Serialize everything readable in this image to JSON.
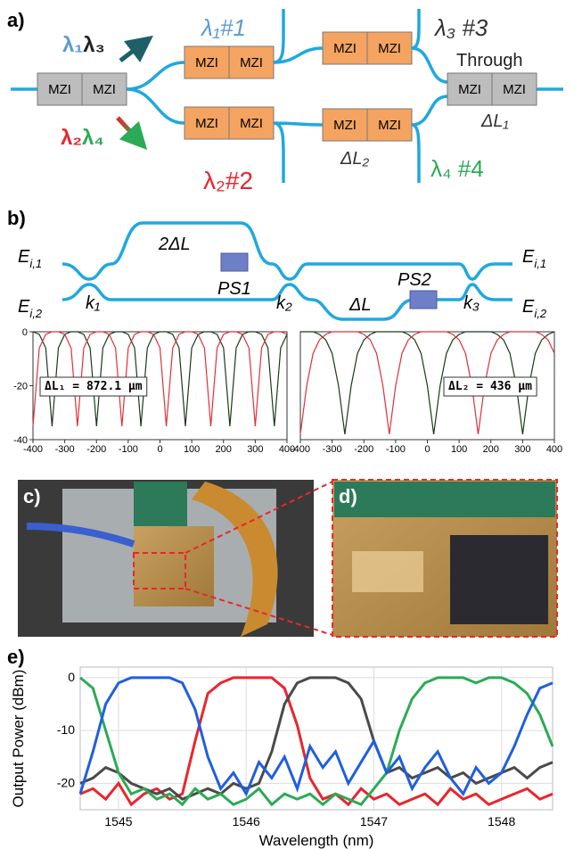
{
  "panel_a": {
    "label": "a)",
    "mzi_boxes": [
      "MZI",
      "MZI",
      "MZI",
      "MZI",
      "MZI",
      "MZI",
      "MZI",
      "MZI",
      "MZI",
      "MZI",
      "MZI",
      "MZI"
    ],
    "in_upper": [
      "λ₁",
      "λ₃"
    ],
    "in_lower": [
      "λ₂",
      "λ₄"
    ],
    "port1": "λ₁#1",
    "port2": "λ₂#2",
    "port3": "λ₃ #3",
    "port4": "λ₄ #4",
    "through": "Through",
    "dl1": "ΔL₁",
    "dl2": "ΔL₂"
  },
  "panel_b": {
    "label": "b)",
    "ports": [
      {
        "main": "E",
        "sub": "i,1"
      },
      {
        "main": "E",
        "sub": "i,2"
      },
      {
        "main": "E",
        "sub": "i,1"
      },
      {
        "main": "E",
        "sub": "i,2"
      }
    ],
    "couplers": [
      "k₁",
      "k₂",
      "k₃"
    ],
    "arms": [
      "2ΔL",
      "ΔL"
    ],
    "phase_shifters": [
      "PS1",
      "PS2"
    ]
  },
  "panel_c": {
    "label": "c)"
  },
  "panel_d": {
    "label": "d)"
  },
  "panel_e": {
    "label": "e)"
  },
  "chart_data": [
    {
      "type": "line",
      "annotation": "ΔL₁ = 872.1 μm",
      "x": [
        -400,
        -380,
        -360,
        -340,
        -320,
        -300,
        -280,
        -260,
        -240,
        -220,
        -200,
        -180,
        -160,
        -140,
        -120,
        -100,
        -80,
        -60,
        -40,
        -20,
        0,
        20,
        40,
        60,
        80,
        100,
        120,
        140,
        160,
        180,
        200,
        220,
        240,
        260,
        280,
        300,
        320,
        340,
        360,
        380,
        400
      ],
      "series": [
        {
          "color": "#1a3a1a",
          "values": [
            0,
            -1,
            -6,
            -35,
            -6,
            -1,
            0,
            0,
            -1,
            -6,
            -35,
            -6,
            -1,
            0,
            0,
            -1,
            -6,
            -35,
            -6,
            -1,
            0,
            0,
            -1,
            -6,
            -35,
            -6,
            -1,
            0,
            0,
            -1,
            -6,
            -35,
            -6,
            -1,
            0,
            0,
            -1,
            -6,
            -35,
            -6,
            -1
          ]
        },
        {
          "color": "#e0303a",
          "values": [
            -35,
            -6,
            -1,
            0,
            0,
            -1,
            -6,
            -35,
            -6,
            -1,
            0,
            0,
            -1,
            -6,
            -35,
            -6,
            -1,
            0,
            0,
            -1,
            -6,
            -35,
            -6,
            -1,
            0,
            0,
            -1,
            -6,
            -35,
            -6,
            -1,
            0,
            0,
            -1,
            -6,
            -35,
            -6,
            -1,
            0,
            0,
            -1
          ]
        }
      ],
      "xlim": [
        -400,
        400
      ],
      "xticks": [
        -400,
        -300,
        -200,
        -100,
        0,
        100,
        200,
        300,
        400
      ],
      "ylim": [
        -40,
        0
      ],
      "yticks": [
        -40,
        -20,
        0
      ]
    },
    {
      "type": "line",
      "annotation": "ΔL₂ = 436 μm",
      "x": [
        -400,
        -380,
        -360,
        -340,
        -320,
        -300,
        -280,
        -260,
        -240,
        -220,
        -200,
        -180,
        -160,
        -140,
        -120,
        -100,
        -80,
        -60,
        -40,
        -20,
        0,
        20,
        40,
        60,
        80,
        100,
        120,
        140,
        160,
        180,
        200,
        220,
        240,
        260,
        280,
        300,
        320,
        340,
        360,
        380,
        400
      ],
      "series": [
        {
          "color": "#1a3a1a",
          "values": [
            0,
            0,
            0,
            -1,
            -3,
            -8,
            -20,
            -38,
            -20,
            -8,
            -3,
            -1,
            0,
            0,
            0,
            0,
            0,
            -1,
            -3,
            -8,
            -20,
            -38,
            -20,
            -8,
            -3,
            -1,
            0,
            0,
            0,
            0,
            0,
            -1,
            -3,
            -8,
            -20,
            -38,
            -20,
            -8,
            -3,
            -1,
            0
          ]
        },
        {
          "color": "#e0303a",
          "values": [
            -38,
            -20,
            -8,
            -3,
            -1,
            0,
            0,
            0,
            0,
            0,
            -1,
            -3,
            -8,
            -20,
            -38,
            -20,
            -8,
            -3,
            -1,
            0,
            0,
            0,
            0,
            0,
            -1,
            -3,
            -8,
            -20,
            -38,
            -20,
            -8,
            -3,
            -1,
            0,
            0,
            0,
            0,
            0,
            -1,
            -3,
            -8
          ]
        }
      ],
      "xlim": [
        -400,
        400
      ],
      "xticks": [
        -400,
        -300,
        -200,
        -100,
        0,
        100,
        200,
        300,
        400
      ],
      "ylim": [
        -40,
        0
      ]
    },
    {
      "type": "line",
      "x_label": "Wavelength (nm)",
      "y_label": "Output Power (dBm)",
      "x": [
        1544.7,
        1544.8,
        1544.9,
        1545.0,
        1545.1,
        1545.2,
        1545.3,
        1545.4,
        1545.5,
        1545.6,
        1545.7,
        1545.8,
        1545.9,
        1546.0,
        1546.1,
        1546.2,
        1546.3,
        1546.4,
        1546.5,
        1546.6,
        1546.7,
        1546.8,
        1546.9,
        1547.0,
        1547.1,
        1547.2,
        1547.3,
        1547.4,
        1547.5,
        1547.6,
        1547.7,
        1547.8,
        1547.9,
        1548.0,
        1548.1,
        1548.2,
        1548.3,
        1548.4
      ],
      "series": [
        {
          "color": "#e8262c",
          "values": [
            -22,
            -21,
            -23,
            -20,
            -24,
            -22,
            -21,
            -23,
            -22,
            -12,
            -3,
            -1,
            0,
            0,
            0,
            0,
            -2,
            -9,
            -19,
            -23,
            -22,
            -24,
            -21,
            -23,
            -22,
            -24,
            -23,
            -22,
            -24,
            -21,
            -23,
            -22,
            -24,
            -23,
            -22,
            -21,
            -23,
            -22
          ]
        },
        {
          "color": "#4a4a4a",
          "values": [
            -20,
            -19,
            -17,
            -18,
            -20,
            -21,
            -22,
            -21,
            -23,
            -22,
            -21,
            -22,
            -20,
            -21,
            -20,
            -14,
            -5,
            -1,
            0,
            0,
            0,
            -1,
            -4,
            -12,
            -18,
            -17,
            -19,
            -18,
            -17,
            -19,
            -18,
            -20,
            -19,
            -18,
            -17,
            -19,
            -17,
            -16
          ]
        },
        {
          "color": "#2bab55",
          "values": [
            0,
            -2,
            -10,
            -18,
            -22,
            -21,
            -23,
            -22,
            -24,
            -21,
            -23,
            -22,
            -24,
            -23,
            -21,
            -24,
            -22,
            -23,
            -22,
            -24,
            -22,
            -23,
            -24,
            -21,
            -18,
            -10,
            -4,
            -1,
            0,
            0,
            0,
            -1,
            0,
            0,
            -1,
            -3,
            -7,
            -13
          ]
        },
        {
          "color": "#1f5fe0",
          "values": [
            -22,
            -14,
            -5,
            -1,
            0,
            0,
            0,
            0,
            -1,
            -6,
            -15,
            -21,
            -18,
            -22,
            -16,
            -19,
            -15,
            -21,
            -13,
            -17,
            -14,
            -20,
            -16,
            -12,
            -18,
            -15,
            -21,
            -17,
            -14,
            -19,
            -22,
            -17,
            -20,
            -18,
            -13,
            -7,
            -2,
            -1
          ]
        }
      ],
      "xlim": [
        1544.7,
        1548.4
      ],
      "xticks": [
        1545,
        1546,
        1547,
        1548
      ],
      "ylim": [
        -25,
        2
      ],
      "yticks": [
        -20,
        -10,
        0
      ],
      "grid": true
    }
  ]
}
